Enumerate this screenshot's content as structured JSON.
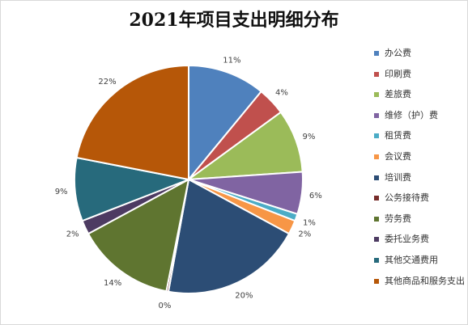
{
  "chart_data": {
    "type": "pie",
    "title": "2021年项目支出明细分布",
    "categories": [
      "办公费",
      "印刷费",
      "差旅费",
      "维修（护）费",
      "租赁费",
      "会议费",
      "培训费",
      "公务接待费",
      "劳务费",
      "委托业务费",
      "其他交通费用",
      "其他商品和服务支出"
    ],
    "values": [
      11,
      4,
      9,
      6,
      1,
      2,
      20,
      0.3,
      14,
      2,
      9,
      22
    ],
    "labels": [
      "11%",
      "4%",
      "9%",
      "6%",
      "1%",
      "2%",
      "20%",
      "0%",
      "14%",
      "2%",
      "9%",
      "22%"
    ],
    "colors": [
      "#4f81bd",
      "#c0504d",
      "#9bbb59",
      "#8064a2",
      "#4bacc6",
      "#f79646",
      "#2c4d75",
      "#772c2a",
      "#5f7530",
      "#4d3b62",
      "#276a7c",
      "#b65708"
    ],
    "legend": "right"
  }
}
